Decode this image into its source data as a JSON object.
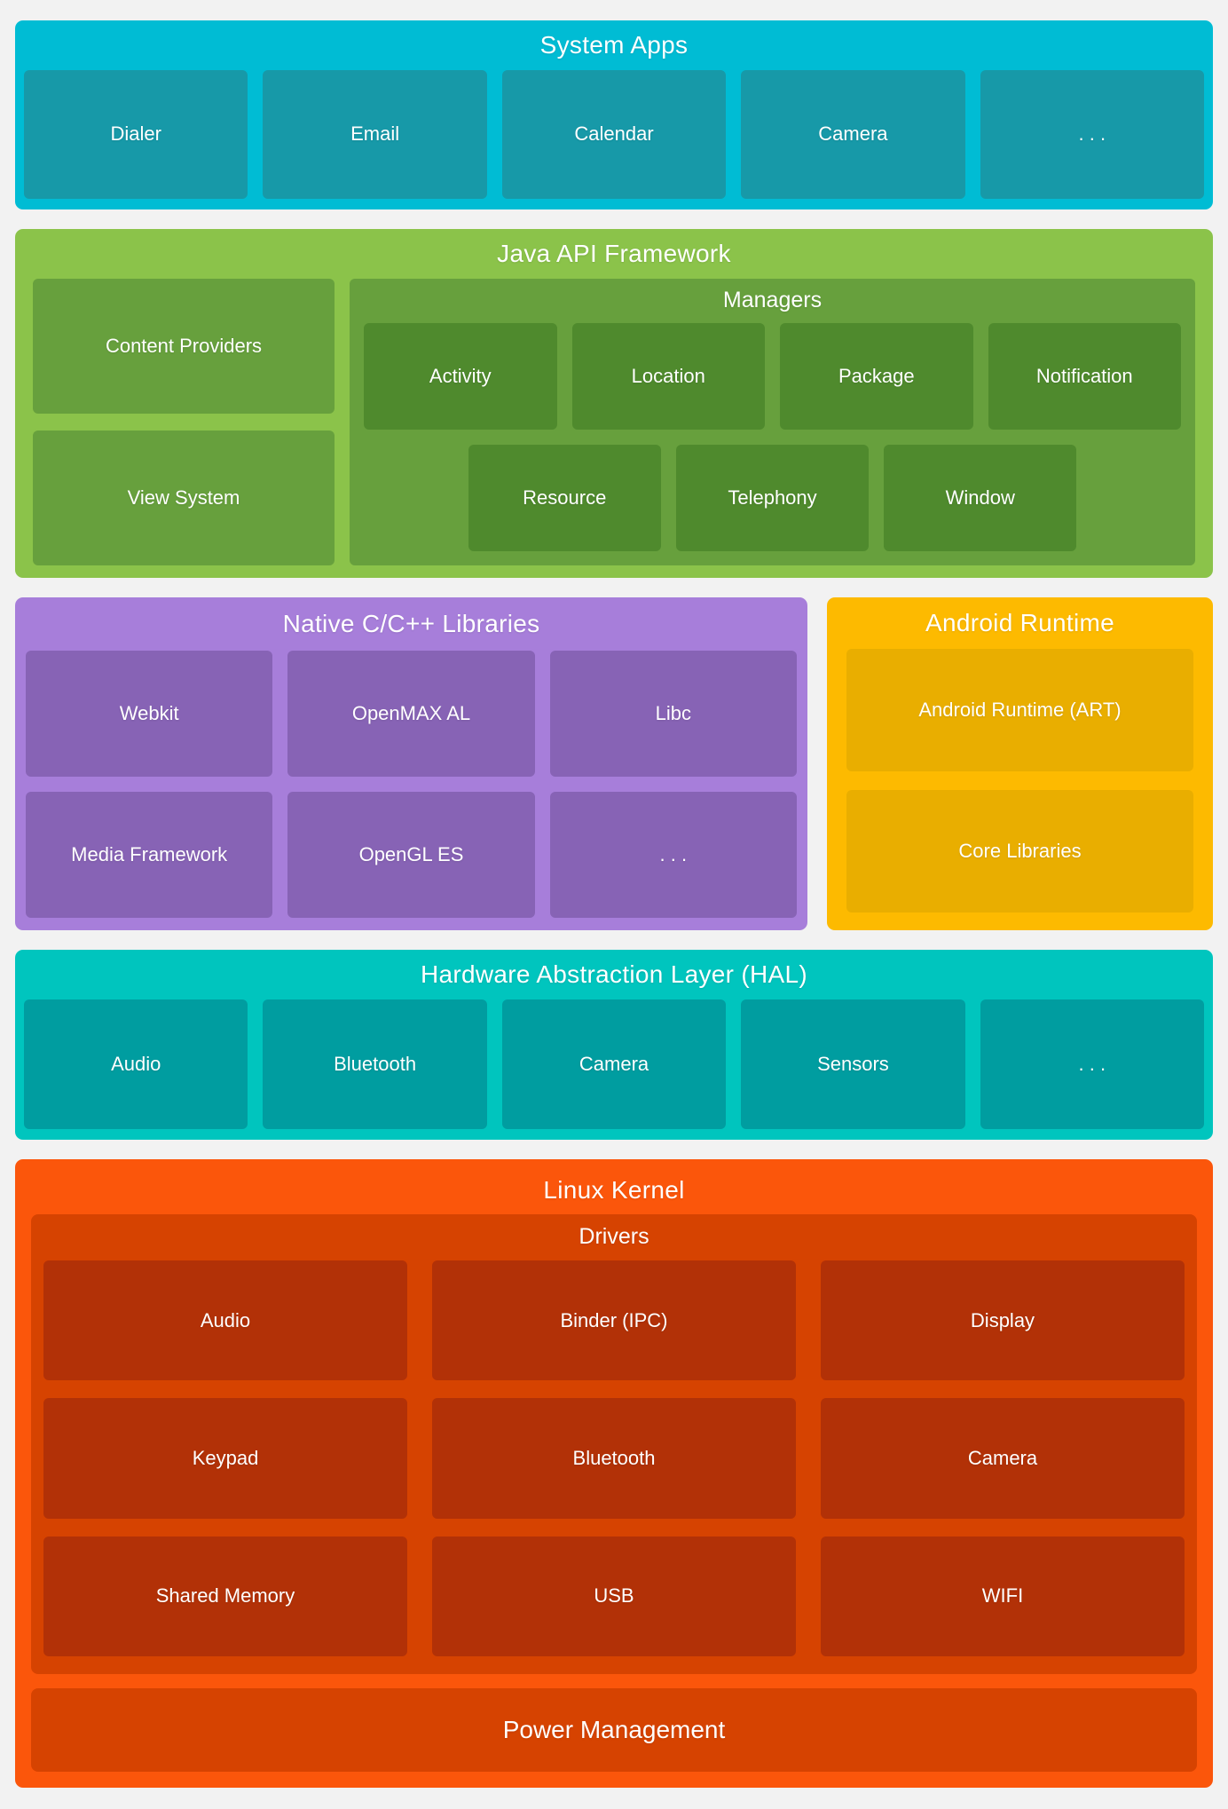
{
  "page": {
    "background": "#F2F2F2",
    "text_color": "#FFFFFF"
  },
  "layers": {
    "system_apps": {
      "title": "System Apps",
      "color_outer": "#00BCD4",
      "color_inner": "#1799A8",
      "items": [
        "Dialer",
        "Email",
        "Calendar",
        "Camera",
        ". . ."
      ]
    },
    "java_api": {
      "title": "Java API Framework",
      "color_outer": "#8BC34A",
      "color_mid": "#67A03D",
      "color_chip": "#4F8A2D",
      "left_items": [
        "Content Providers",
        "View System"
      ],
      "managers": {
        "title": "Managers",
        "row1": [
          "Activity",
          "Location",
          "Package",
          "Notification"
        ],
        "row2": [
          "Resource",
          "Telephony",
          "Window"
        ]
      }
    },
    "native_libs": {
      "title": "Native C/C++ Libraries",
      "color_outer": "#A77EDA",
      "color_inner": "#8763B5",
      "items": [
        "Webkit",
        "OpenMAX AL",
        "Libc",
        "Media Framework",
        "OpenGL ES",
        ". . ."
      ]
    },
    "android_runtime": {
      "title": "Android Runtime",
      "color_outer": "#FDBA00",
      "color_inner": "#E9AE00",
      "items": [
        "Android Runtime (ART)",
        "Core Libraries"
      ]
    },
    "hal": {
      "title": "Hardware Abstraction Layer (HAL)",
      "color_outer": "#00C5BE",
      "color_inner": "#009DA0",
      "items": [
        "Audio",
        "Bluetooth",
        "Camera",
        "Sensors",
        ". . ."
      ]
    },
    "kernel": {
      "title": "Linux Kernel",
      "color_outer": "#FB560B",
      "color_mid": "#D64301",
      "color_inner": "#B23107",
      "drivers": {
        "title": "Drivers",
        "items": [
          "Audio",
          "Binder (IPC)",
          "Display",
          "Keypad",
          "Bluetooth",
          "Camera",
          "Shared Memory",
          "USB",
          "WIFI"
        ]
      },
      "power_label": "Power Management"
    }
  }
}
